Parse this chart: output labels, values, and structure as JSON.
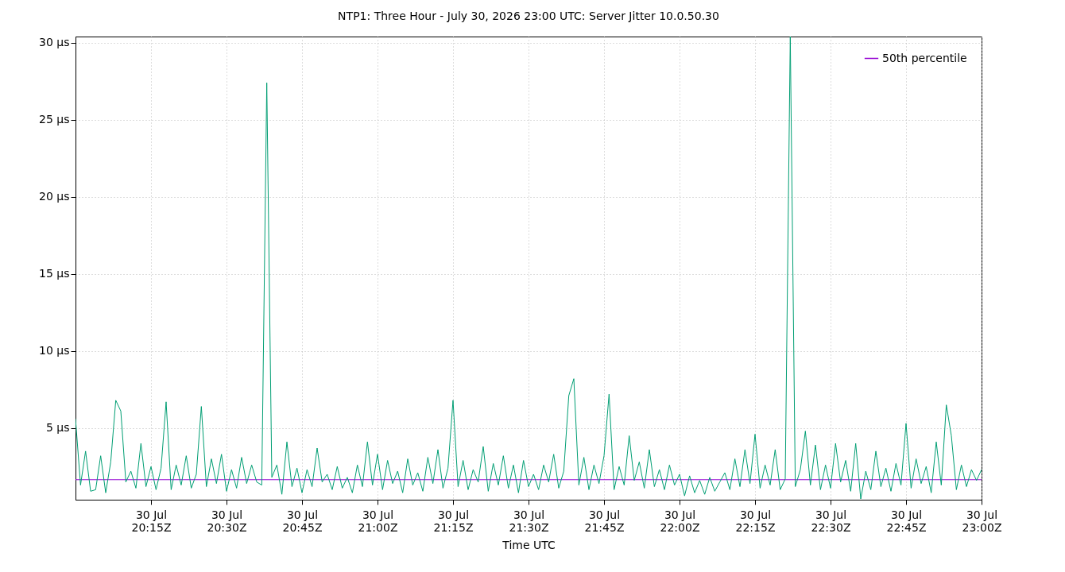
{
  "chart_data": {
    "type": "line",
    "title": "NTP1: Three Hour - July 30, 2026 23:00 UTC: Server Jitter 10.0.50.30",
    "xlabel": "Time UTC",
    "x": [
      "2026-07-30T20:00",
      "2026-07-30T20:01",
      "2026-07-30T20:02",
      "2026-07-30T20:03",
      "2026-07-30T20:04",
      "2026-07-30T20:05",
      "2026-07-30T20:06",
      "2026-07-30T20:07",
      "2026-07-30T20:08",
      "2026-07-30T20:09",
      "2026-07-30T20:10",
      "2026-07-30T20:11",
      "2026-07-30T20:12",
      "2026-07-30T20:13",
      "2026-07-30T20:14",
      "2026-07-30T20:15",
      "2026-07-30T20:16",
      "2026-07-30T20:17",
      "2026-07-30T20:18",
      "2026-07-30T20:19",
      "2026-07-30T20:20",
      "2026-07-30T20:21",
      "2026-07-30T20:22",
      "2026-07-30T20:23",
      "2026-07-30T20:24",
      "2026-07-30T20:25",
      "2026-07-30T20:26",
      "2026-07-30T20:27",
      "2026-07-30T20:28",
      "2026-07-30T20:29",
      "2026-07-30T20:30",
      "2026-07-30T20:31",
      "2026-07-30T20:32",
      "2026-07-30T20:33",
      "2026-07-30T20:34",
      "2026-07-30T20:35",
      "2026-07-30T20:36",
      "2026-07-30T20:37",
      "2026-07-30T20:38",
      "2026-07-30T20:39",
      "2026-07-30T20:40",
      "2026-07-30T20:41",
      "2026-07-30T20:42",
      "2026-07-30T20:43",
      "2026-07-30T20:44",
      "2026-07-30T20:45",
      "2026-07-30T20:46",
      "2026-07-30T20:47",
      "2026-07-30T20:48",
      "2026-07-30T20:49",
      "2026-07-30T20:50",
      "2026-07-30T20:51",
      "2026-07-30T20:52",
      "2026-07-30T20:53",
      "2026-07-30T20:54",
      "2026-07-30T20:55",
      "2026-07-30T20:56",
      "2026-07-30T20:57",
      "2026-07-30T20:58",
      "2026-07-30T20:59",
      "2026-07-30T21:00",
      "2026-07-30T21:01",
      "2026-07-30T21:02",
      "2026-07-30T21:03",
      "2026-07-30T21:04",
      "2026-07-30T21:05",
      "2026-07-30T21:06",
      "2026-07-30T21:07",
      "2026-07-30T21:08",
      "2026-07-30T21:09",
      "2026-07-30T21:10",
      "2026-07-30T21:11",
      "2026-07-30T21:12",
      "2026-07-30T21:13",
      "2026-07-30T21:14",
      "2026-07-30T21:15",
      "2026-07-30T21:16",
      "2026-07-30T21:17",
      "2026-07-30T21:18",
      "2026-07-30T21:19",
      "2026-07-30T21:20",
      "2026-07-30T21:21",
      "2026-07-30T21:22",
      "2026-07-30T21:23",
      "2026-07-30T21:24",
      "2026-07-30T21:25",
      "2026-07-30T21:26",
      "2026-07-30T21:27",
      "2026-07-30T21:28",
      "2026-07-30T21:29",
      "2026-07-30T21:30",
      "2026-07-30T21:31",
      "2026-07-30T21:32",
      "2026-07-30T21:33",
      "2026-07-30T21:34",
      "2026-07-30T21:35",
      "2026-07-30T21:36",
      "2026-07-30T21:37",
      "2026-07-30T21:38",
      "2026-07-30T21:39",
      "2026-07-30T21:40",
      "2026-07-30T21:41",
      "2026-07-30T21:42",
      "2026-07-30T21:43",
      "2026-07-30T21:44",
      "2026-07-30T21:45",
      "2026-07-30T21:46",
      "2026-07-30T21:47",
      "2026-07-30T21:48",
      "2026-07-30T21:49",
      "2026-07-30T21:50",
      "2026-07-30T21:51",
      "2026-07-30T21:52",
      "2026-07-30T21:53",
      "2026-07-30T21:54",
      "2026-07-30T21:55",
      "2026-07-30T21:56",
      "2026-07-30T21:57",
      "2026-07-30T21:58",
      "2026-07-30T21:59",
      "2026-07-30T22:00",
      "2026-07-30T22:01",
      "2026-07-30T22:02",
      "2026-07-30T22:03",
      "2026-07-30T22:04",
      "2026-07-30T22:05",
      "2026-07-30T22:06",
      "2026-07-30T22:07",
      "2026-07-30T22:08",
      "2026-07-30T22:09",
      "2026-07-30T22:10",
      "2026-07-30T22:11",
      "2026-07-30T22:12",
      "2026-07-30T22:13",
      "2026-07-30T22:14",
      "2026-07-30T22:15",
      "2026-07-30T22:16",
      "2026-07-30T22:17",
      "2026-07-30T22:18",
      "2026-07-30T22:19",
      "2026-07-30T22:20",
      "2026-07-30T22:21",
      "2026-07-30T22:22",
      "2026-07-30T22:23",
      "2026-07-30T22:24",
      "2026-07-30T22:25",
      "2026-07-30T22:26",
      "2026-07-30T22:27",
      "2026-07-30T22:28",
      "2026-07-30T22:29",
      "2026-07-30T22:30",
      "2026-07-30T22:31",
      "2026-07-30T22:32",
      "2026-07-30T22:33",
      "2026-07-30T22:34",
      "2026-07-30T22:35",
      "2026-07-30T22:36",
      "2026-07-30T22:37",
      "2026-07-30T22:38",
      "2026-07-30T22:39",
      "2026-07-30T22:40",
      "2026-07-30T22:41",
      "2026-07-30T22:42",
      "2026-07-30T22:43",
      "2026-07-30T22:44",
      "2026-07-30T22:45",
      "2026-07-30T22:46",
      "2026-07-30T22:47",
      "2026-07-30T22:48",
      "2026-07-30T22:49",
      "2026-07-30T22:50",
      "2026-07-30T22:51",
      "2026-07-30T22:52",
      "2026-07-30T22:53",
      "2026-07-30T22:54",
      "2026-07-30T22:55",
      "2026-07-30T22:56",
      "2026-07-30T22:57",
      "2026-07-30T22:58",
      "2026-07-30T22:59",
      "2026-07-30T23:00"
    ],
    "series": [
      {
        "name": "50th percentile",
        "color": "#9400d3",
        "x": [
          "2026-07-30T20:00",
          "2026-07-30T23:00"
        ],
        "values": [
          1.65,
          1.65
        ]
      },
      {
        "color": "#009e73",
        "values": [
          5.6,
          1.3,
          3.5,
          0.9,
          1.0,
          3.2,
          0.8,
          2.8,
          6.8,
          6.1,
          1.5,
          2.2,
          1.1,
          4.0,
          1.2,
          2.5,
          1.0,
          2.4,
          6.7,
          1.0,
          2.6,
          1.3,
          3.2,
          1.1,
          2.0,
          6.4,
          1.2,
          3.0,
          1.4,
          3.3,
          0.9,
          2.3,
          1.1,
          3.1,
          1.4,
          2.6,
          1.5,
          1.3,
          27.4,
          1.8,
          2.6,
          0.7,
          4.1,
          1.2,
          2.4,
          0.8,
          2.3,
          1.2,
          3.7,
          1.5,
          2.0,
          1.0,
          2.5,
          1.1,
          1.8,
          0.8,
          2.6,
          1.2,
          4.1,
          1.3,
          3.3,
          1.0,
          2.9,
          1.4,
          2.2,
          0.8,
          3.0,
          1.3,
          2.1,
          0.9,
          3.1,
          1.4,
          3.6,
          1.1,
          2.4,
          6.8,
          1.2,
          2.9,
          1.0,
          2.3,
          1.5,
          3.8,
          0.9,
          2.7,
          1.3,
          3.2,
          1.1,
          2.6,
          0.8,
          2.9,
          1.2,
          2.0,
          1.0,
          2.6,
          1.5,
          3.3,
          1.1,
          2.2,
          7.1,
          8.2,
          1.3,
          3.1,
          1.0,
          2.6,
          1.4,
          3.2,
          7.2,
          1.0,
          2.5,
          1.3,
          4.5,
          1.6,
          2.8,
          1.1,
          3.6,
          1.2,
          2.3,
          1.0,
          2.6,
          1.3,
          2.0,
          0.6,
          1.9,
          0.8,
          1.6,
          0.7,
          1.8,
          0.9,
          1.5,
          2.1,
          1.0,
          3.0,
          1.2,
          3.6,
          1.4,
          4.6,
          1.1,
          2.6,
          1.3,
          3.6,
          1.0,
          1.7,
          30.4,
          1.2,
          2.3,
          4.8,
          1.3,
          3.9,
          1.0,
          2.6,
          1.1,
          4.0,
          1.5,
          2.9,
          0.9,
          4.0,
          0.4,
          2.2,
          1.0,
          3.5,
          1.2,
          2.4,
          0.9,
          2.7,
          1.3,
          5.3,
          1.1,
          3.0,
          1.4,
          2.5,
          0.8,
          4.1,
          1.3,
          6.5,
          4.5,
          1.0,
          2.6,
          1.2,
          2.3,
          1.6,
          2.3
        ]
      }
    ],
    "xlim": [
      "2026-07-30T20:00",
      "2026-07-30T23:00"
    ],
    "xticks": [
      {
        "value": "2026-07-30T20:15",
        "label": "30 Jul\n20:15Z"
      },
      {
        "value": "2026-07-30T20:30",
        "label": "30 Jul\n20:30Z"
      },
      {
        "value": "2026-07-30T20:45",
        "label": "30 Jul\n20:45Z"
      },
      {
        "value": "2026-07-30T21:00",
        "label": "30 Jul\n21:00Z"
      },
      {
        "value": "2026-07-30T21:15",
        "label": "30 Jul\n21:15Z"
      },
      {
        "value": "2026-07-30T21:30",
        "label": "30 Jul\n21:30Z"
      },
      {
        "value": "2026-07-30T21:45",
        "label": "30 Jul\n21:45Z"
      },
      {
        "value": "2026-07-30T22:00",
        "label": "30 Jul\n22:00Z"
      },
      {
        "value": "2026-07-30T22:15",
        "label": "30 Jul\n22:15Z"
      },
      {
        "value": "2026-07-30T22:30",
        "label": "30 Jul\n22:30Z"
      },
      {
        "value": "2026-07-30T22:45",
        "label": "30 Jul\n22:45Z"
      },
      {
        "value": "2026-07-30T23:00",
        "label": "30 Jul\n23:00Z"
      }
    ],
    "ylim": [
      0.35,
      30.4
    ],
    "yticks": [
      {
        "value": 5,
        "label": "5 µs"
      },
      {
        "value": 10,
        "label": "10 µs"
      },
      {
        "value": 15,
        "label": "15 µs"
      },
      {
        "value": 20,
        "label": "20 µs"
      },
      {
        "value": 25,
        "label": "25 µs"
      },
      {
        "value": 30,
        "label": "30 µs"
      }
    ],
    "grid": true,
    "legend": "top right",
    "marker": "none"
  }
}
